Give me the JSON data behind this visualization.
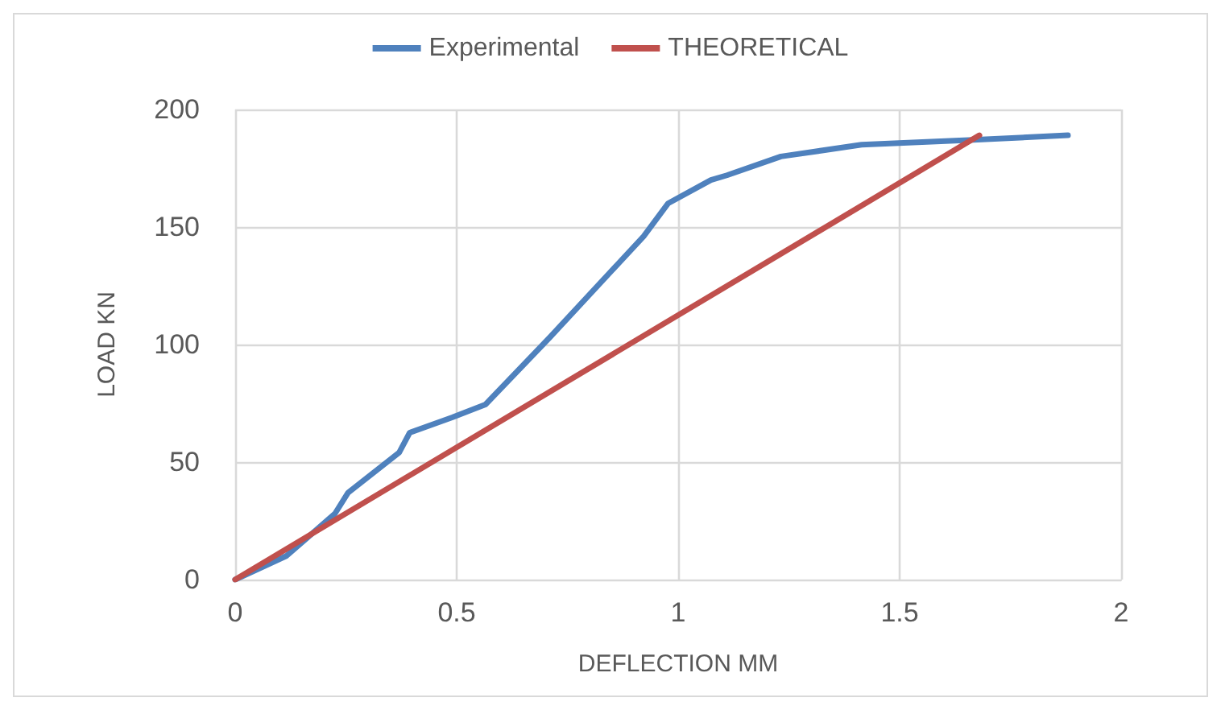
{
  "chart_data": {
    "type": "line",
    "xlabel": "DEFLECTION MM",
    "ylabel": "LOAD KN",
    "xlim": [
      0,
      2
    ],
    "xticks": [
      0,
      0.5,
      1,
      1.5,
      2
    ],
    "ylim": [
      0,
      200
    ],
    "yticks": [
      0,
      50,
      100,
      150,
      200
    ],
    "grid": true,
    "legend": "top",
    "marker": "none",
    "line_style": "solid",
    "series": [
      {
        "name": "Experimental",
        "color": "#4f81bd",
        "x": [
          0,
          0.115,
          0.225,
          0.255,
          0.37,
          0.394,
          0.49,
          0.565,
          0.71,
          0.922,
          0.977,
          1.074,
          1.11,
          1.232,
          1.414,
          1.656,
          1.88
        ],
        "values": [
          0,
          10,
          28,
          37,
          54,
          62.5,
          69,
          74.5,
          103,
          146,
          160,
          170,
          172,
          180,
          185,
          187,
          189
        ]
      },
      {
        "name": "THEORETICAL",
        "color": "#c0504d",
        "x": [
          0,
          1.68
        ],
        "values": [
          0,
          189
        ]
      }
    ]
  }
}
